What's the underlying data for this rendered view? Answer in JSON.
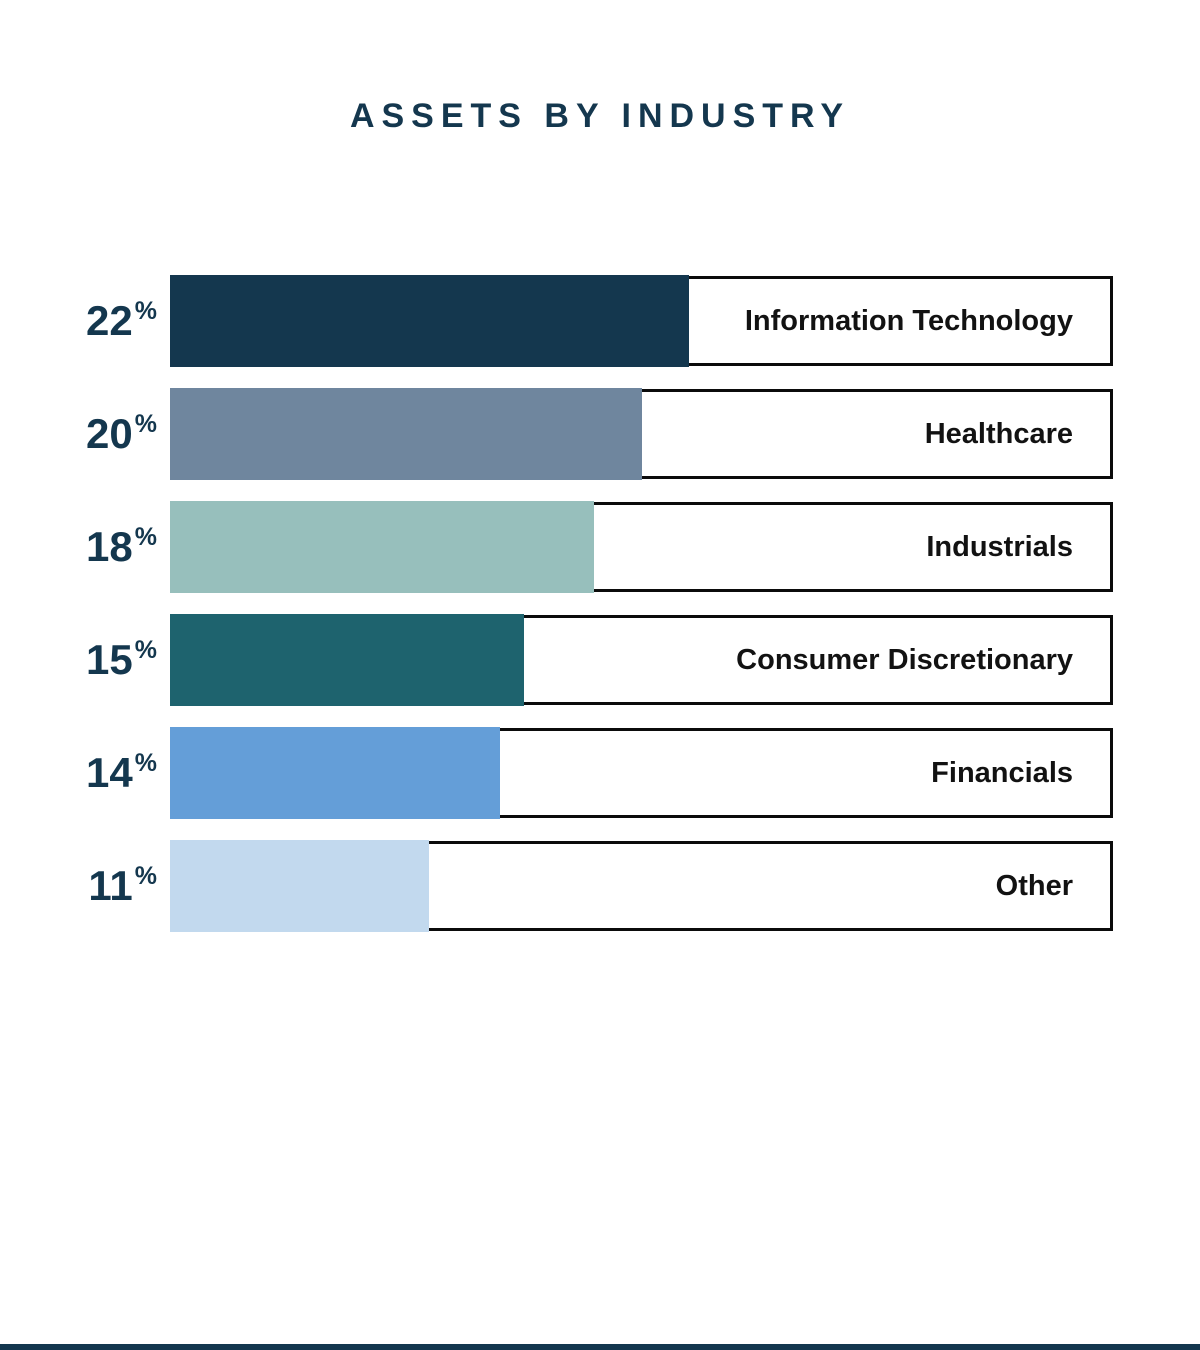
{
  "header": {
    "title": "ASSETS BY INDUSTRY",
    "title_color": "#14374E"
  },
  "chart_data": {
    "type": "bar",
    "orientation": "horizontal",
    "title": "ASSETS BY INDUSTRY",
    "categories": [
      "Information Technology",
      "Healthcare",
      "Industrials",
      "Consumer Discretionary",
      "Financials",
      "Other"
    ],
    "values": [
      22,
      20,
      18,
      15,
      14,
      11
    ],
    "value_suffix": "%",
    "bar_colors": [
      "#14374E",
      "#6F869E",
      "#97BFBC",
      "#1E636E",
      "#649ED8",
      "#C2D9EE"
    ],
    "value_label_color": "#14374E",
    "category_label_color": "#121212",
    "box_border_color": "#0B0B0B",
    "track_max_value": 40,
    "grid": false,
    "legend_position": "none",
    "value_labels_position": "left-of-bar",
    "category_labels_position": "boxed-right-aligned"
  },
  "footer": {
    "accent_bar_color": "#14374E"
  }
}
